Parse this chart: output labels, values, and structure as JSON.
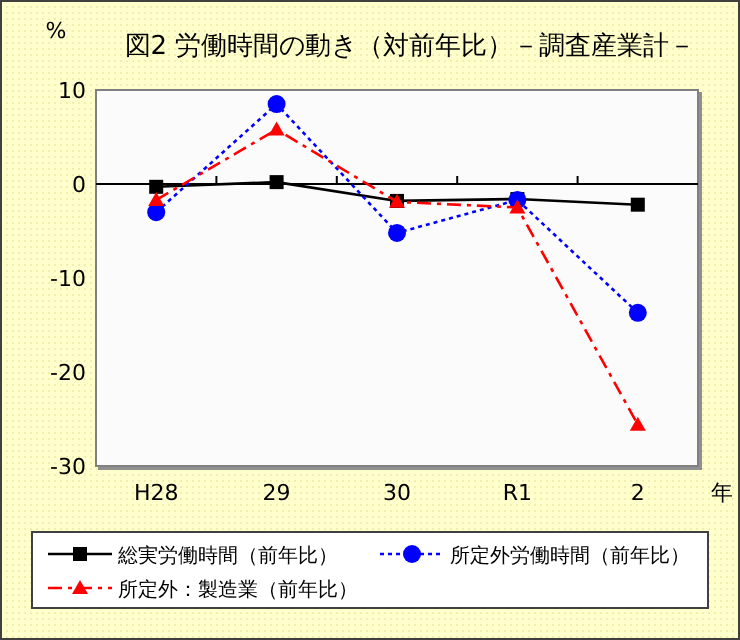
{
  "chart_data": {
    "type": "line",
    "title": "図2  労働時間の動き（対前年比）－調査産業計－",
    "xlabel": "年",
    "ylabel": "%",
    "categories": [
      "H28",
      "29",
      "30",
      "R1",
      "2"
    ],
    "series": [
      {
        "name": "総実労働時間（前年比）",
        "color": "#000000",
        "marker": "square",
        "line_style": "solid",
        "values": [
          -0.3,
          0.2,
          -1.8,
          -1.6,
          -2.2
        ]
      },
      {
        "name": "所定外労働時間（前年比）",
        "color": "#0000ff",
        "marker": "circle",
        "line_style": "dotted",
        "values": [
          -3.0,
          8.5,
          -5.2,
          -1.7,
          -13.7
        ]
      },
      {
        "name": "所定外：製造業（前年比）",
        "color": "#ff0000",
        "marker": "triangle",
        "line_style": "dashed",
        "values": [
          -1.7,
          5.8,
          -1.9,
          -2.5,
          -25.6
        ]
      }
    ],
    "ylim": [
      -30,
      10
    ],
    "yticks": [
      -30,
      -20,
      -10,
      0,
      10
    ],
    "legend": "bottom"
  }
}
